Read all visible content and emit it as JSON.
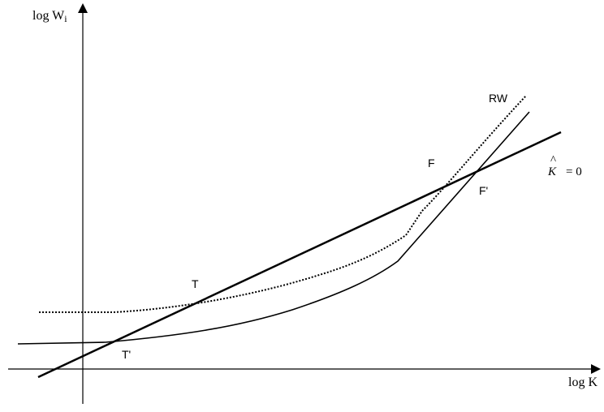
{
  "axes": {
    "y_label_main": "log W",
    "y_label_sub": "i",
    "x_label": "log K"
  },
  "labels": {
    "rw": "RW",
    "f": "F",
    "f_prime": "F'",
    "t": "T",
    "t_prime": "T'",
    "k_symbol": "K",
    "k_hat": "^",
    "k_equation": "= 0"
  },
  "colors": {
    "line": "#000000",
    "background": "#ffffff"
  }
}
